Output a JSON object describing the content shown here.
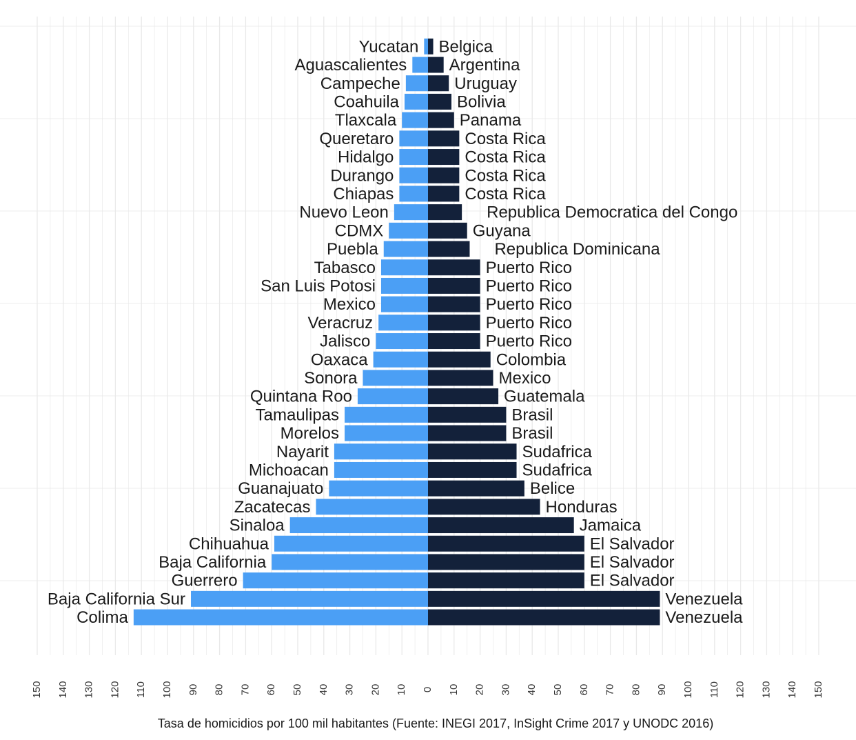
{
  "chart_data": {
    "type": "bar",
    "orientation": "horizontal-diverging",
    "xlabel": "Tasa de homicidios por 100 mil habitantes (Fuente: INEGI 2017, InSight Crime 2017 y UNODC 2016)",
    "xlim": [
      -150,
      150
    ],
    "ticks": [
      150,
      140,
      130,
      120,
      110,
      100,
      90,
      80,
      70,
      60,
      50,
      40,
      30,
      20,
      10,
      0,
      10,
      20,
      30,
      40,
      50,
      60,
      70,
      80,
      90,
      100,
      110,
      120,
      130,
      140,
      150
    ],
    "grid": true,
    "colors": {
      "left": "#4b9ff5",
      "right": "#13213a",
      "grid": "#e9e9e9"
    },
    "series": [
      {
        "side": "left",
        "values": [
          1.5,
          6,
          8.5,
          9,
          10,
          11,
          11,
          11,
          11,
          13,
          15,
          17,
          18,
          18,
          18,
          19,
          20,
          21,
          25,
          27,
          32,
          32,
          36,
          36,
          38,
          43,
          53,
          59,
          60,
          71,
          91,
          113
        ]
      },
      {
        "side": "right",
        "values": [
          2,
          6,
          8,
          9,
          10,
          12,
          12,
          12,
          12,
          13,
          15,
          16,
          20,
          20,
          20,
          20,
          20,
          24,
          25,
          27,
          30,
          30,
          34,
          34,
          37,
          43,
          56,
          60,
          60,
          60,
          89,
          89
        ]
      }
    ],
    "rows": [
      {
        "left": "Yucatan",
        "right": "Belgica"
      },
      {
        "left": "Aguascalientes",
        "right": "Argentina"
      },
      {
        "left": "Campeche",
        "right": "Uruguay"
      },
      {
        "left": "Coahuila",
        "right": "Bolivia"
      },
      {
        "left": "Tlaxcala",
        "right": "Panama"
      },
      {
        "left": "Queretaro",
        "right": "Costa Rica"
      },
      {
        "left": "Hidalgo",
        "right": "Costa Rica"
      },
      {
        "left": "Durango",
        "right": "Costa Rica"
      },
      {
        "left": "Chiapas",
        "right": "Costa Rica"
      },
      {
        "left": "Nuevo Leon",
        "right": "Republica Democratica del Congo"
      },
      {
        "left": "CDMX",
        "right": "Guyana"
      },
      {
        "left": "Puebla",
        "right": "Republica Dominicana"
      },
      {
        "left": "Tabasco",
        "right": "Puerto Rico"
      },
      {
        "left": "San Luis Potosi",
        "right": "Puerto Rico"
      },
      {
        "left": "Mexico",
        "right": "Puerto Rico"
      },
      {
        "left": "Veracruz",
        "right": "Puerto Rico"
      },
      {
        "left": "Jalisco",
        "right": "Puerto Rico"
      },
      {
        "left": "Oaxaca",
        "right": "Colombia"
      },
      {
        "left": "Sonora",
        "right": "Mexico"
      },
      {
        "left": "Quintana Roo",
        "right": "Guatemala"
      },
      {
        "left": "Tamaulipas",
        "right": "Brasil"
      },
      {
        "left": "Morelos",
        "right": "Brasil"
      },
      {
        "left": "Nayarit",
        "right": "Sudafrica"
      },
      {
        "left": "Michoacan",
        "right": "Sudafrica"
      },
      {
        "left": "Guanajuato",
        "right": "Belice"
      },
      {
        "left": "Zacatecas",
        "right": "Honduras"
      },
      {
        "left": "Sinaloa",
        "right": "Jamaica"
      },
      {
        "left": "Chihuahua",
        "right": "El Salvador"
      },
      {
        "left": "Baja California",
        "right": "El Salvador"
      },
      {
        "left": "Guerrero",
        "right": "El Salvador"
      },
      {
        "left": "Baja California Sur",
        "right": "Venezuela"
      },
      {
        "left": "Colima",
        "right": "Venezuela"
      }
    ]
  }
}
